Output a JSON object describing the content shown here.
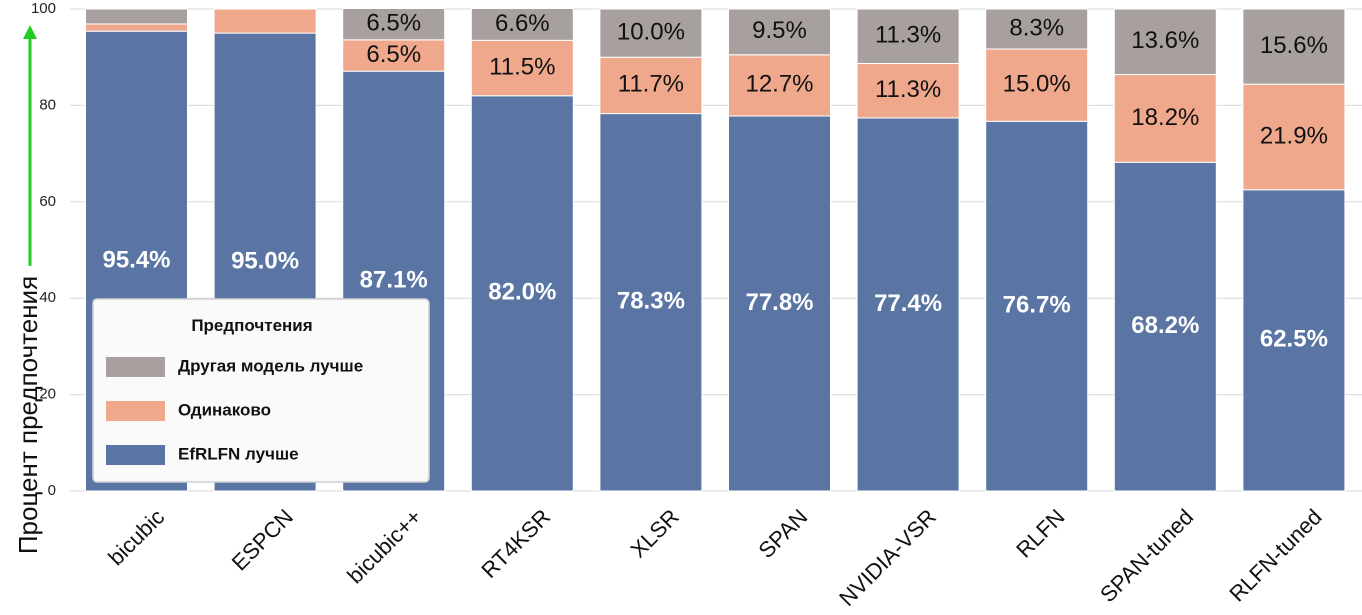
{
  "chart_data": {
    "type": "bar",
    "stacked": true,
    "categories": [
      "bicubic",
      "ESPCN",
      "bicubic++",
      "RT4KSR",
      "XLSR",
      "SPAN",
      "NVIDIA-VSR",
      "RLFN",
      "SPAN-tuned",
      "RLFN-tuned"
    ],
    "series": [
      {
        "name": "EfRLFN лучше",
        "color": "#5a75a4",
        "values": [
          95.4,
          95.0,
          87.1,
          82.0,
          78.3,
          77.8,
          77.4,
          76.7,
          68.2,
          62.5
        ],
        "labels": [
          "95.4%",
          "95.0%",
          "87.1%",
          "82.0%",
          "78.3%",
          "77.8%",
          "77.4%",
          "76.7%",
          "68.2%",
          "62.5%"
        ]
      },
      {
        "name": "Одинаково",
        "color": "#f0a88c",
        "values": [
          1.5,
          5.0,
          6.5,
          11.5,
          11.7,
          12.7,
          11.3,
          15.0,
          18.2,
          21.9
        ],
        "labels": [
          "",
          "",
          "6.5%",
          "11.5%",
          "11.7%",
          "12.7%",
          "11.3%",
          "15.0%",
          "18.2%",
          "21.9%"
        ]
      },
      {
        "name": "Другая модель лучше",
        "color": "#a7a09f",
        "values": [
          3.1,
          0.0,
          6.5,
          6.6,
          10.0,
          9.5,
          11.3,
          8.3,
          13.6,
          15.6
        ],
        "labels": [
          "",
          "",
          "6.5%",
          "6.6%",
          "10.0%",
          "9.5%",
          "11.3%",
          "8.3%",
          "13.6%",
          "15.6%"
        ]
      }
    ],
    "title": "",
    "xlabel": "",
    "ylabel": "Процент предпочтения",
    "ylim": [
      0,
      100
    ],
    "yticks": [
      0,
      20,
      40,
      60,
      80,
      100
    ],
    "grid": true,
    "legend": {
      "title": "Предпочтения",
      "placement": "lower-left",
      "order": [
        "Другая модель лучше",
        "Одинаково",
        "EfRLFN лучше"
      ]
    },
    "arrow_color": "#22cc22"
  }
}
